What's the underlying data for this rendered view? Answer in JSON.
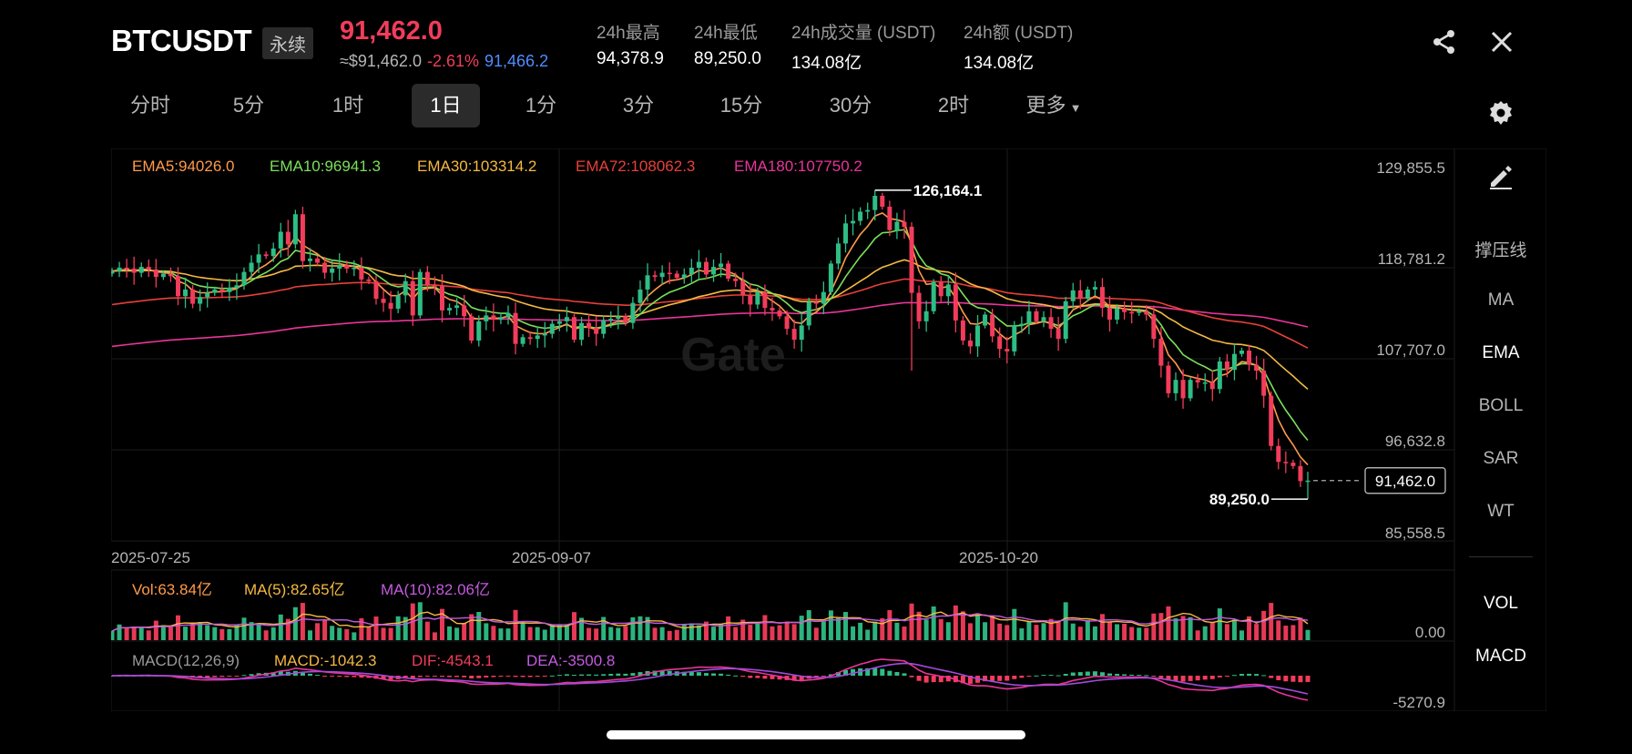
{
  "header": {
    "symbol": "BTCUSDT",
    "contract_type": "永续",
    "last_price": "91,462.0",
    "usd_price": "≈$91,462.0",
    "change_pct": "-2.61%",
    "mark_price": "91,466.2",
    "stats": [
      {
        "label": "24h最高",
        "value": "94,378.9"
      },
      {
        "label": "24h最低",
        "value": "89,250.0"
      },
      {
        "label": "24h成交量 (USDT)",
        "value": "134.08亿"
      },
      {
        "label": "24h额 (USDT)",
        "value": "134.08亿"
      }
    ]
  },
  "icons": {
    "share": "share-icon",
    "close": "close-icon",
    "settings": "gear-icon",
    "draw": "pencil-icon"
  },
  "tabs": [
    "分时",
    "5分",
    "1时",
    "1日",
    "1分",
    "3分",
    "15分",
    "30分",
    "2时",
    "更多"
  ],
  "active_tab": "1日",
  "sidebar": [
    "撑压线",
    "MA",
    "EMA",
    "BOLL",
    "SAR",
    "WT",
    "VOL",
    "MACD"
  ],
  "active_sidebar": [
    "EMA",
    "VOL",
    "MACD"
  ],
  "colors": {
    "up": "#2ebd85",
    "down": "#f23c5b",
    "ema5": "#ff9a4a",
    "ema10": "#7be05a",
    "ema30": "#f5b942",
    "ema72": "#e8403a",
    "ema180": "#e8359a",
    "mark": "#4f8cff"
  },
  "chart_data": {
    "type": "candlestick",
    "interval": "1日",
    "ema_legend": [
      {
        "name": "EMA5",
        "text": "EMA5:94026.0",
        "value": 94026.0
      },
      {
        "name": "EMA10",
        "text": "EMA10:96941.3",
        "value": 96941.3
      },
      {
        "name": "EMA30",
        "text": "EMA30:103314.2",
        "value": 103314.2
      },
      {
        "name": "EMA72",
        "text": "EMA72:108062.3",
        "value": 108062.3
      },
      {
        "name": "EMA180",
        "text": "EMA180:107750.2",
        "value": 107750.2
      }
    ],
    "price_axis": [
      "129,855.5",
      "118,781.2",
      "107,707.0",
      "96,632.8",
      "85,558.5"
    ],
    "ylim": [
      85558.5,
      129855.5
    ],
    "date_labels": [
      "2025-07-25",
      "2025-09-07",
      "2025-10-20"
    ],
    "annotations": {
      "high": "126,164.1",
      "low": "89,250.0",
      "current": "91,462.0"
    },
    "closes": [
      116500,
      116900,
      116800,
      116300,
      117000,
      116700,
      115800,
      116200,
      115900,
      113500,
      114300,
      112600,
      113400,
      113900,
      114300,
      114000,
      114500,
      114800,
      116400,
      117500,
      118500,
      118300,
      119200,
      121200,
      119700,
      123300,
      117700,
      118000,
      117500,
      116300,
      116800,
      117200,
      116800,
      116900,
      115500,
      115300,
      113200,
      112700,
      112000,
      113600,
      115300,
      111200,
      116400,
      114800,
      114700,
      111800,
      112100,
      112400,
      111100,
      108200,
      110500,
      111200,
      110700,
      111000,
      111500,
      107800,
      108600,
      108400,
      108800,
      109000,
      110200,
      110500,
      111000,
      108300,
      110300,
      109700,
      109000,
      110600,
      110800,
      111100,
      110300,
      112700,
      114300,
      116000,
      115800,
      116300,
      116200,
      115700,
      116100,
      116900,
      117600,
      116100,
      117000,
      117400,
      115600,
      115300,
      113600,
      112500,
      114000,
      112100,
      111800,
      111100,
      109600,
      108300,
      110000,
      112800,
      112600,
      114000,
      117400,
      119800,
      122200,
      122500,
      123600,
      123800,
      125500,
      124200,
      121400,
      122400,
      121800,
      113900,
      110500,
      111700,
      115200,
      113500,
      114900,
      110600,
      108200,
      107500,
      110000,
      111300,
      108700,
      107200,
      106900,
      110000,
      110200,
      111700,
      110500,
      111000,
      109600,
      108400,
      112900,
      114200,
      113200,
      114300,
      114600,
      112100,
      110700,
      112000,
      111600,
      111500,
      111700,
      111300,
      108400,
      105200,
      101900,
      103500,
      101300,
      103500,
      103200,
      103200,
      102400,
      105700,
      104700,
      106600,
      107000,
      105300,
      104600,
      101600,
      95600,
      93700,
      93600,
      93200,
      91400,
      91462
    ],
    "volume_legend": [
      {
        "text": "Vol:63.84亿",
        "value": 63.84
      },
      {
        "text": "MA(5):82.65亿",
        "value": 82.65
      },
      {
        "text": "MA(10):82.06亿",
        "value": 82.06
      }
    ],
    "volume_axis": "0.00",
    "macd_legend": [
      {
        "text": "MACD(12,26,9)"
      },
      {
        "text": "MACD:-1042.3",
        "value": -1042.3
      },
      {
        "text": "DIF:-4543.1",
        "value": -4543.1
      },
      {
        "text": "DEA:-3500.8",
        "value": -3500.8
      }
    ],
    "macd_axis": "-5270.9",
    "watermark": "Gate"
  }
}
